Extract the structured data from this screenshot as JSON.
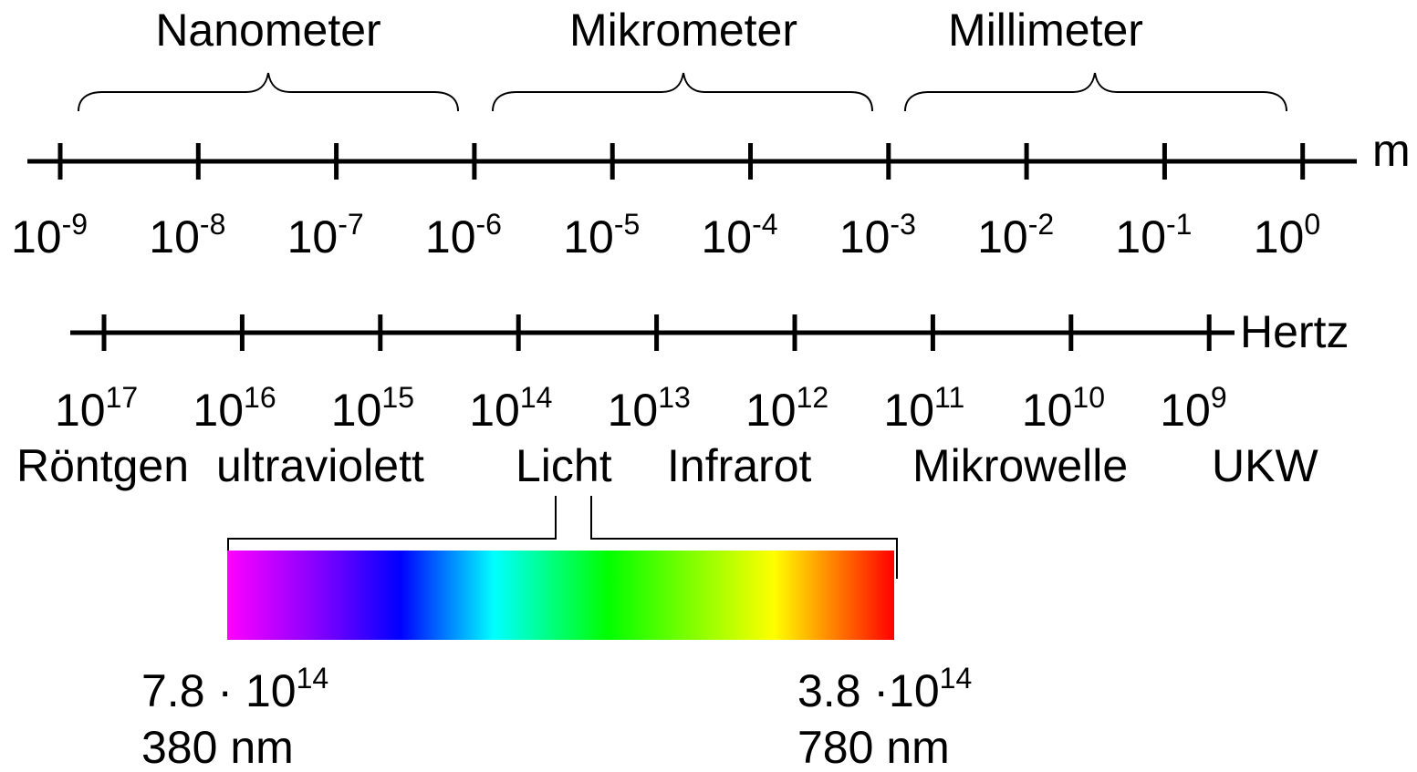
{
  "colors": {
    "ink": "#000000",
    "background": "#ffffff",
    "spectrum": [
      "#ff00ff",
      "#8000ff",
      "#0000ff",
      "#00ffff",
      "#00ff00",
      "#ffff00",
      "#ff8000",
      "#ff0000"
    ]
  },
  "wavelength_scale": {
    "unit": "m",
    "groups": [
      "Nanometer",
      "Mikrometer",
      "Millimeter"
    ],
    "ticks": [
      {
        "base": "10",
        "exp": "-9"
      },
      {
        "base": "10",
        "exp": "-8"
      },
      {
        "base": "10",
        "exp": "-7"
      },
      {
        "base": "10",
        "exp": "-6"
      },
      {
        "base": "10",
        "exp": "-5"
      },
      {
        "base": "10",
        "exp": "-4"
      },
      {
        "base": "10",
        "exp": "-3"
      },
      {
        "base": "10",
        "exp": "-2"
      },
      {
        "base": "10",
        "exp": "-1"
      },
      {
        "base": "10",
        "exp": "0"
      }
    ]
  },
  "frequency_scale": {
    "unit": "Hertz",
    "ticks": [
      {
        "base": "10",
        "exp": "17"
      },
      {
        "base": "10",
        "exp": "16"
      },
      {
        "base": "10",
        "exp": "15"
      },
      {
        "base": "10",
        "exp": "14"
      },
      {
        "base": "10",
        "exp": "13"
      },
      {
        "base": "10",
        "exp": "12"
      },
      {
        "base": "10",
        "exp": "11"
      },
      {
        "base": "10",
        "exp": "10"
      },
      {
        "base": "10",
        "exp": "9"
      }
    ]
  },
  "bands": [
    "Röntgen",
    "ultraviolett",
    "Licht",
    "Infrarot",
    "Mikrowelle",
    "UKW"
  ],
  "visible_spectrum": {
    "left": {
      "freq_base": "7.8 · 10",
      "freq_exp": "14",
      "wavelength": "380 nm"
    },
    "right": {
      "freq_base": "3.8 ·10",
      "freq_exp": "14",
      "wavelength": "780 nm"
    }
  }
}
